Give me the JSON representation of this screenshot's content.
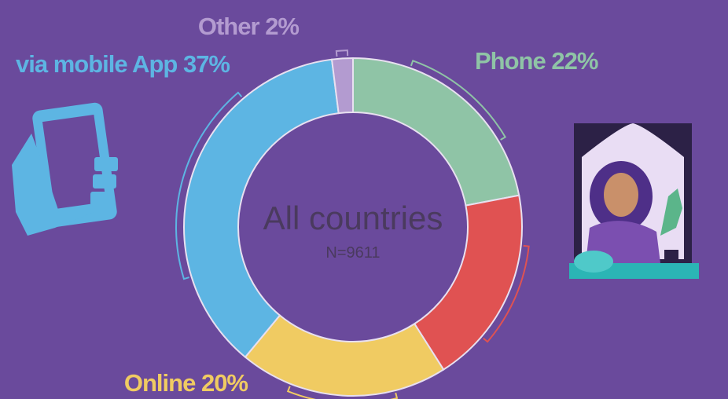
{
  "chart_data": {
    "type": "donut",
    "title": "All countries",
    "subtitle": "N=9611",
    "categories": [
      "Phone",
      null,
      "Online",
      "via mobile App",
      "Other"
    ],
    "values": [
      22,
      19,
      20,
      37,
      2
    ],
    "value_labels": [
      "22%",
      null,
      "20%",
      "37%",
      "2%"
    ],
    "colors": [
      "#8fc4a6",
      "#e05252",
      "#f0cb62",
      "#5db5e3",
      "#b39bd0"
    ]
  }
}
